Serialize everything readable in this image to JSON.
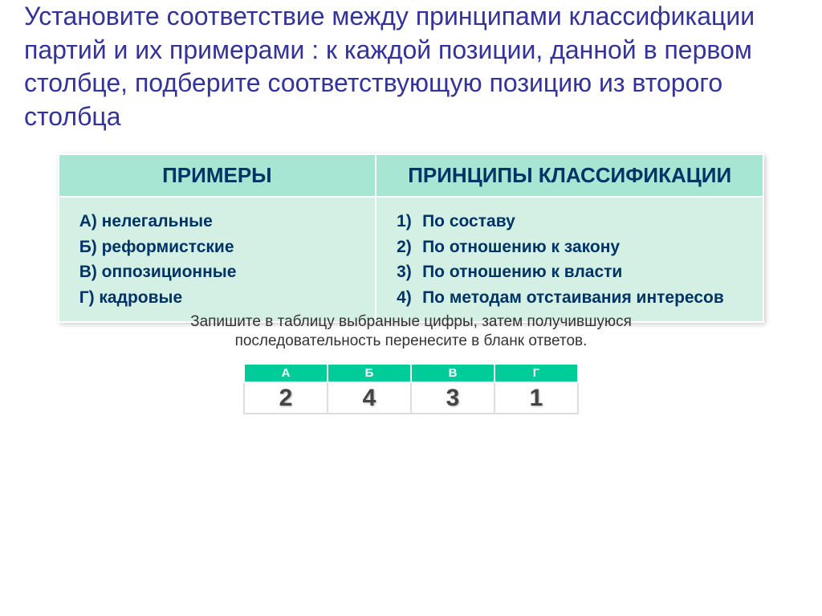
{
  "title": "Установите соответствие между  принципами классификации партий и их примерами : к каждой позиции, данной в первом столбце, подберите соответствующую позицию из второго столбца",
  "headers": {
    "left": "ПРИМЕРЫ",
    "right": "ПРИНЦИПЫ КЛАССИФИКАЦИИ"
  },
  "examples": [
    {
      "marker": "А)",
      "text": "нелегальные"
    },
    {
      "marker": "Б)",
      "text": "реформистские"
    },
    {
      "marker": "В)",
      "text": "оппозиционные"
    },
    {
      "marker": "Г)",
      "text": "кадровые"
    }
  ],
  "principles": [
    {
      "marker": "1)",
      "text": "По составу"
    },
    {
      "marker": "2)",
      "text": "По отношению к закону"
    },
    {
      "marker": "3)",
      "text": "По отношению к власти"
    },
    {
      "marker": "4)",
      "text": "По методам отстаивания интересов"
    }
  ],
  "obscured_text": "Запишите в таблицу выбранные цифры, затем получившуюся",
  "note": "последовательность перенесите в бланк ответов.",
  "answer_headers": [
    "А",
    "Б",
    "В",
    "Г"
  ],
  "answer_values": [
    "2",
    "4",
    "3",
    "1"
  ],
  "colors": {
    "title_color": "#333399",
    "header_bg": "#a8e6d4",
    "cell_bg": "#d4f0e4",
    "text_color": "#003366",
    "answer_header_bg": "#00cc99"
  }
}
